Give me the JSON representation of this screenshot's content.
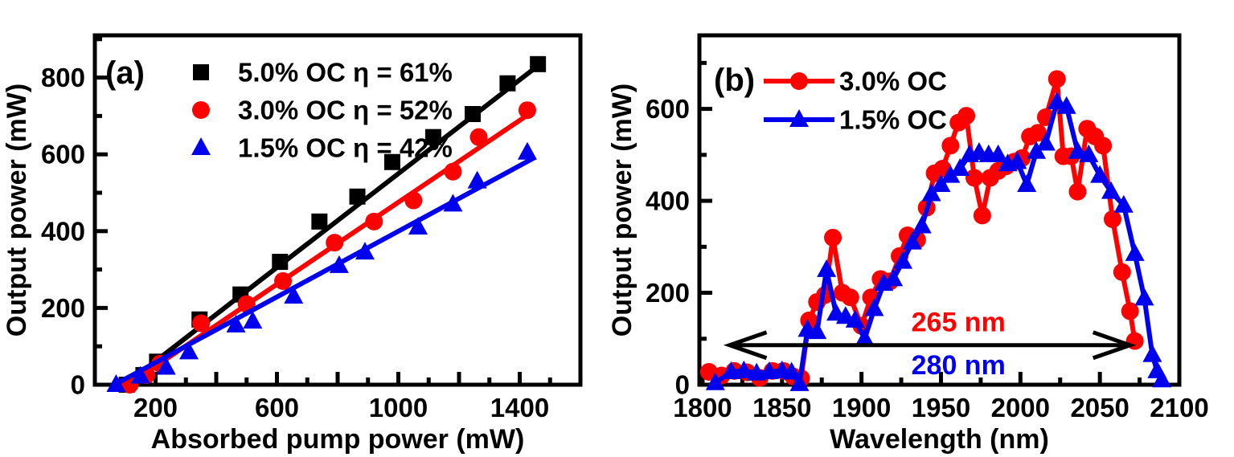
{
  "figure": {
    "background": "#ffffff",
    "axis_color": "#000000"
  },
  "chart_data": [
    {
      "id": "panel-a",
      "type": "scatter",
      "panel_label": "(a)",
      "xlabel": "Absorbed pump power (mW)",
      "ylabel": "Output power (mW)",
      "xlim": [
        0,
        1600
      ],
      "ylim": [
        0,
        910
      ],
      "grid": false,
      "legend_position": "top-left",
      "x_axis": {
        "minor_step": 100,
        "major_step": 200,
        "labeled_ticks": [
          200,
          600,
          1000,
          1400
        ]
      },
      "y_axis": {
        "minor_step": 100,
        "major_step": 200,
        "labeled_ticks": [
          0,
          200,
          400,
          600,
          800
        ]
      },
      "series": [
        {
          "name": "5.0% OC η = 61%",
          "color": "#000000",
          "marker": "square",
          "points": [
            [
              105,
              0
            ],
            [
              160,
              25
            ],
            [
              205,
              60
            ],
            [
              345,
              170
            ],
            [
              480,
              235
            ],
            [
              610,
              320
            ],
            [
              740,
              425
            ],
            [
              865,
              490
            ],
            [
              980,
              580
            ],
            [
              1115,
              645
            ],
            [
              1245,
              705
            ],
            [
              1360,
              785
            ],
            [
              1460,
              835
            ]
          ],
          "fit_line": [
            [
              100,
              0
            ],
            [
              1475,
              840
            ]
          ]
        },
        {
          "name": "3.0% OC η = 52%",
          "color": "#ff0000",
          "marker": "circle",
          "points": [
            [
              115,
              0
            ],
            [
              170,
              25
            ],
            [
              215,
              55
            ],
            [
              350,
              160
            ],
            [
              500,
              210
            ],
            [
              620,
              270
            ],
            [
              790,
              370
            ],
            [
              920,
              425
            ],
            [
              1050,
              480
            ],
            [
              1180,
              555
            ],
            [
              1265,
              645
            ],
            [
              1425,
              715
            ]
          ],
          "fit_line": [
            [
              110,
              0
            ],
            [
              1440,
              710
            ]
          ]
        },
        {
          "name": "1.5% OC η = 42%",
          "color": "#0000ee",
          "marker": "triangle",
          "points": [
            [
              70,
              0
            ],
            [
              150,
              22
            ],
            [
              235,
              45
            ],
            [
              310,
              85
            ],
            [
              465,
              155
            ],
            [
              520,
              165
            ],
            [
              655,
              230
            ],
            [
              805,
              310
            ],
            [
              890,
              345
            ],
            [
              1065,
              410
            ],
            [
              1180,
              470
            ],
            [
              1260,
              530
            ],
            [
              1425,
              605
            ]
          ],
          "fit_line": [
            [
              65,
              0
            ],
            [
              1450,
              592
            ]
          ]
        }
      ]
    },
    {
      "id": "panel-b",
      "type": "line",
      "panel_label": "(b)",
      "xlabel": "Wavelength (nm)",
      "ylabel": "Output power (mW)",
      "xlim": [
        1798,
        2100
      ],
      "ylim": [
        0,
        760
      ],
      "grid": false,
      "legend_position": "top-left",
      "x_axis": {
        "minor_step": 25,
        "major_step": 50,
        "labeled_ticks": [
          1800,
          1850,
          1900,
          1950,
          2000,
          2050,
          2100
        ]
      },
      "y_axis": {
        "minor_step": 100,
        "major_step": 200,
        "labeled_ticks": [
          0,
          200,
          400,
          600
        ]
      },
      "series": [
        {
          "name": "3.0% OC",
          "color": "#ff0000",
          "marker": "circle",
          "points": [
            [
              1804,
              28
            ],
            [
              1812,
              20
            ],
            [
              1820,
              30
            ],
            [
              1828,
              27
            ],
            [
              1836,
              15
            ],
            [
              1844,
              30
            ],
            [
              1851,
              30
            ],
            [
              1857,
              18
            ],
            [
              1862,
              14
            ],
            [
              1867,
              140
            ],
            [
              1872,
              180
            ],
            [
              1877,
              195
            ],
            [
              1882,
              320
            ],
            [
              1888,
              200
            ],
            [
              1893,
              190
            ],
            [
              1900,
              128
            ],
            [
              1906,
              190
            ],
            [
              1912,
              230
            ],
            [
              1918,
              225
            ],
            [
              1924,
              280
            ],
            [
              1929,
              325
            ],
            [
              1935,
              315
            ],
            [
              1941,
              385
            ],
            [
              1946,
              460
            ],
            [
              1951,
              470
            ],
            [
              1956,
              520
            ],
            [
              1961,
              570
            ],
            [
              1966,
              585
            ],
            [
              1971,
              450
            ],
            [
              1976,
              368
            ],
            [
              1981,
              450
            ],
            [
              1986,
              465
            ],
            [
              1991,
              475
            ],
            [
              1996,
              485
            ],
            [
              2001,
              493
            ],
            [
              2006,
              540
            ],
            [
              2011,
              548
            ],
            [
              2016,
              582
            ],
            [
              2023,
              665
            ],
            [
              2027,
              497
            ],
            [
              2032,
              497
            ],
            [
              2036,
              420
            ],
            [
              2042,
              557
            ],
            [
              2047,
              540
            ],
            [
              2052,
              520
            ],
            [
              2058,
              360
            ],
            [
              2064,
              245
            ],
            [
              2069,
              160
            ],
            [
              2072,
              95
            ]
          ]
        },
        {
          "name": "1.5% OC",
          "color": "#0000ee",
          "marker": "triangle",
          "points": [
            [
              1808,
              4
            ],
            [
              1818,
              28
            ],
            [
              1826,
              30
            ],
            [
              1834,
              25
            ],
            [
              1842,
              28
            ],
            [
              1850,
              30
            ],
            [
              1856,
              27
            ],
            [
              1861,
              2
            ],
            [
              1866,
              120
            ],
            [
              1872,
              115
            ],
            [
              1878,
              250
            ],
            [
              1884,
              155
            ],
            [
              1890,
              148
            ],
            [
              1896,
              140
            ],
            [
              1902,
              100
            ],
            [
              1908,
              165
            ],
            [
              1914,
              220
            ],
            [
              1920,
              230
            ],
            [
              1926,
              268
            ],
            [
              1932,
              310
            ],
            [
              1938,
              345
            ],
            [
              1944,
              415
            ],
            [
              1950,
              435
            ],
            [
              1956,
              455
            ],
            [
              1962,
              470
            ],
            [
              1968,
              500
            ],
            [
              1974,
              505
            ],
            [
              1980,
              500
            ],
            [
              1986,
              500
            ],
            [
              1992,
              480
            ],
            [
              1998,
              485
            ],
            [
              2004,
              435
            ],
            [
              2010,
              507
            ],
            [
              2016,
              525
            ],
            [
              2023,
              615
            ],
            [
              2029,
              605
            ],
            [
              2036,
              507
            ],
            [
              2043,
              500
            ],
            [
              2050,
              455
            ],
            [
              2057,
              420
            ],
            [
              2065,
              390
            ],
            [
              2072,
              285
            ],
            [
              2078,
              188
            ],
            [
              2083,
              65
            ],
            [
              2086,
              30
            ],
            [
              2089,
              10
            ]
          ]
        }
      ],
      "annotations": {
        "tuning_arrow": {
          "x1": 1817,
          "x2": 2069,
          "y": 86
        },
        "labels": [
          {
            "text": "265 nm",
            "color": "#ff0000",
            "x": 1961,
            "y": 135
          },
          {
            "text": "280 nm",
            "color": "#0000ee",
            "x": 1961,
            "y": 42
          }
        ]
      }
    }
  ]
}
